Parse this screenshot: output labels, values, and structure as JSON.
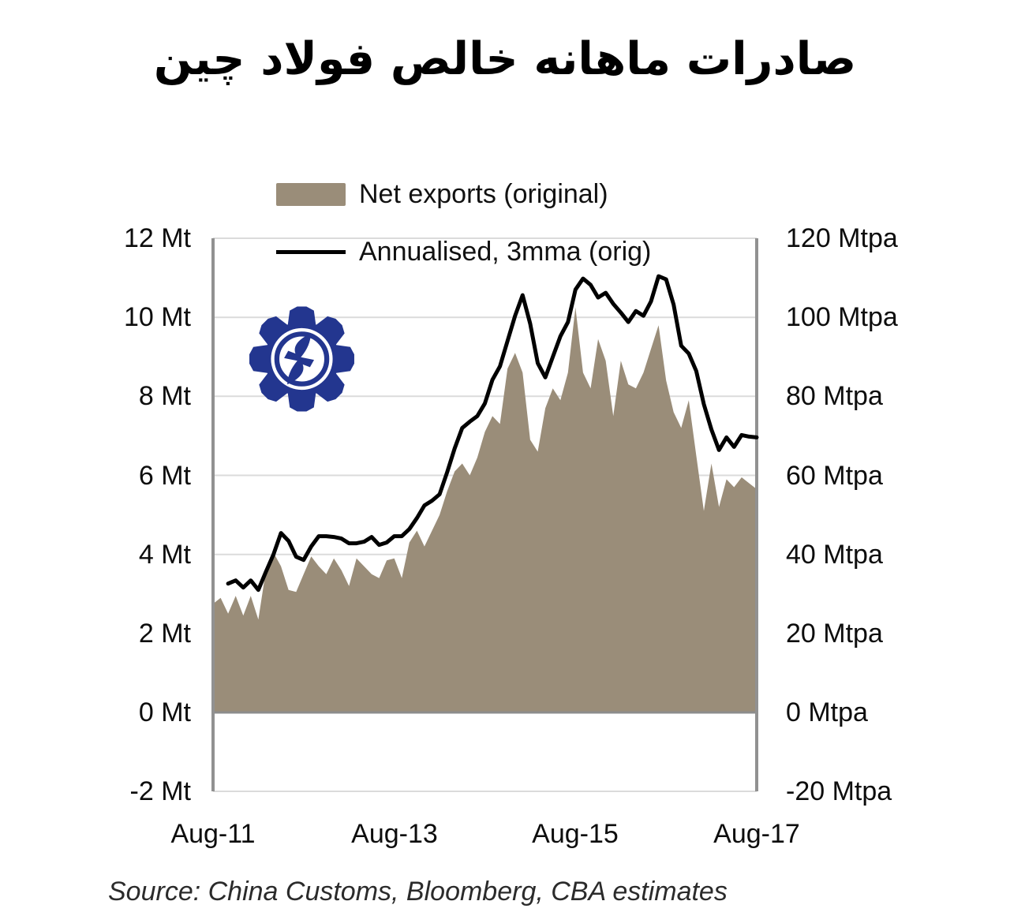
{
  "title": "صادرات ماهانه خالص فولاد چین",
  "legend": {
    "area_label": "Net exports (original)",
    "line_label": "Annualised, 3mma (orig)"
  },
  "source": "Source: China Customs, Bloomberg, CBA estimates",
  "colors": {
    "area": "#9A8D79",
    "line": "#000000",
    "grid": "#DBDBDB",
    "zero_axis": "#8C8C8C",
    "spine": "#919191",
    "logo_blue": "#23368F"
  },
  "chart_data": {
    "type": "area",
    "subtype": "monthly area series with annualised 3mma line overlay",
    "frequency": "monthly",
    "start": "Aug-2011",
    "end": "Aug-2017",
    "grid": "horizontal",
    "legend_position": "top-center",
    "x_axis": {
      "tick_labels": [
        "Aug-11",
        "Aug-13",
        "Aug-15",
        "Aug-17"
      ],
      "tick_month_index": [
        0,
        24,
        48,
        72
      ],
      "total_months": 72
    },
    "left_axis": {
      "unit": "Mt",
      "min": -2,
      "max": 12,
      "tick_values": [
        12,
        10,
        8,
        6,
        4,
        2,
        0,
        -2
      ],
      "tick_labels": [
        "12 Mt",
        "10 Mt",
        "8 Mt",
        "6 Mt",
        "4 Mt",
        "2 Mt",
        "0 Mt",
        "-2 Mt"
      ]
    },
    "right_axis": {
      "unit": "Mtpa",
      "min": -20,
      "max": 120,
      "tick_values": [
        120,
        100,
        80,
        60,
        40,
        20,
        0,
        -20
      ],
      "tick_labels": [
        "120 Mtpa",
        "100 Mtpa",
        "80 Mtpa",
        "60 Mtpa",
        "40 Mtpa",
        "20 Mtpa",
        "0 Mtpa",
        "-20 Mtpa"
      ]
    },
    "series": [
      {
        "name": "Net exports (original)",
        "type": "area",
        "axis": "left",
        "unit": "Mt",
        "month_offset": 0,
        "values": [
          2.75,
          2.9,
          2.5,
          2.95,
          2.45,
          2.95,
          2.35,
          3.6,
          4.05,
          3.7,
          3.1,
          3.05,
          3.5,
          3.95,
          3.7,
          3.5,
          3.9,
          3.6,
          3.2,
          3.9,
          3.7,
          3.5,
          3.4,
          3.85,
          3.9,
          3.4,
          4.3,
          4.6,
          4.2,
          4.6,
          5.0,
          5.6,
          6.1,
          6.3,
          6.0,
          6.45,
          7.1,
          7.5,
          7.3,
          8.7,
          9.1,
          8.6,
          6.9,
          6.6,
          7.7,
          8.2,
          7.9,
          8.6,
          10.25,
          8.6,
          8.2,
          9.45,
          8.9,
          7.5,
          8.9,
          8.3,
          8.2,
          8.6,
          9.2,
          9.8,
          8.4,
          7.6,
          7.2,
          7.9,
          6.5,
          5.1,
          6.3,
          5.2,
          5.9,
          5.7,
          5.95,
          5.8,
          5.65
        ]
      },
      {
        "name": "Annualised, 3mma (orig)",
        "type": "line",
        "axis": "right",
        "unit": "Mtpa",
        "month_offset": 2,
        "values": [
          32.6,
          33.4,
          31.6,
          33.4,
          31.0,
          35.6,
          40.0,
          45.4,
          43.4,
          39.4,
          38.6,
          42.0,
          44.6,
          44.6,
          44.4,
          44.0,
          42.8,
          42.8,
          43.2,
          44.4,
          42.4,
          43.0,
          44.6,
          44.6,
          46.4,
          49.2,
          52.4,
          53.6,
          55.2,
          60.8,
          66.8,
          72.0,
          73.6,
          75.0,
          78.2,
          84.2,
          87.6,
          94.0,
          100.4,
          105.6,
          98.4,
          88.4,
          84.8,
          90.0,
          95.2,
          98.8,
          107.0,
          109.8,
          108.2,
          105.0,
          106.2,
          103.4,
          101.2,
          98.8,
          101.6,
          100.4,
          104.0,
          110.4,
          109.6,
          103.2,
          92.8,
          90.8,
          86.4,
          78.0,
          71.6,
          66.4,
          69.6,
          67.2,
          70.2,
          69.8,
          69.6
        ]
      }
    ]
  }
}
